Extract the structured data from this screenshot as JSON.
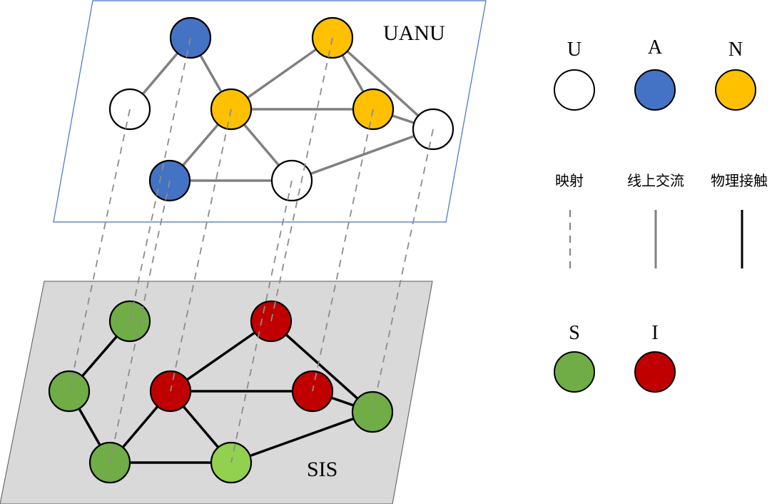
{
  "layers": {
    "top": {
      "label": "UANU",
      "border": "#4472c4"
    },
    "bottom": {
      "label": "SIS",
      "fill": "#d9d9d9"
    }
  },
  "legend": {
    "states_top": [
      {
        "label": "U",
        "color": "#ffffff"
      },
      {
        "label": "A",
        "color": "#4472c4"
      },
      {
        "label": "N",
        "color": "#ffc000"
      }
    ],
    "edges": [
      {
        "label": "映射",
        "style": "dashed",
        "color": "#808080"
      },
      {
        "label": "线上交流",
        "style": "solid",
        "color": "#808080"
      },
      {
        "label": "物理接触",
        "style": "solid",
        "color": "#000000"
      }
    ],
    "states_bottom": [
      {
        "label": "S",
        "color": "#70ad47"
      },
      {
        "label": "I",
        "color": "#c00000"
      }
    ]
  },
  "nodes_top": [
    {
      "id": "t1",
      "state": "U"
    },
    {
      "id": "t2",
      "state": "A"
    },
    {
      "id": "t3",
      "state": "N"
    },
    {
      "id": "t4",
      "state": "A"
    },
    {
      "id": "t5",
      "state": "U"
    },
    {
      "id": "t6",
      "state": "N"
    },
    {
      "id": "t7",
      "state": "N"
    },
    {
      "id": "t8",
      "state": "U"
    }
  ],
  "nodes_bottom": [
    {
      "id": "b1",
      "state": "S"
    },
    {
      "id": "b2",
      "state": "S"
    },
    {
      "id": "b3",
      "state": "I"
    },
    {
      "id": "b4",
      "state": "S"
    },
    {
      "id": "b5",
      "state": "S",
      "color": "#92d050"
    },
    {
      "id": "b6",
      "state": "I"
    },
    {
      "id": "b7",
      "state": "I"
    },
    {
      "id": "b8",
      "state": "S"
    }
  ],
  "edges_top": [
    [
      "t1",
      "t2"
    ],
    [
      "t2",
      "t3"
    ],
    [
      "t3",
      "t6"
    ],
    [
      "t3",
      "t7"
    ],
    [
      "t3",
      "t4"
    ],
    [
      "t3",
      "t5"
    ],
    [
      "t4",
      "t5"
    ],
    [
      "t6",
      "t7"
    ],
    [
      "t6",
      "t8"
    ],
    [
      "t7",
      "t8"
    ],
    [
      "t5",
      "t8"
    ]
  ],
  "edges_bottom": [
    [
      "b2",
      "b1"
    ],
    [
      "b2",
      "b4"
    ],
    [
      "b4",
      "b3"
    ],
    [
      "b4",
      "b5"
    ],
    [
      "b3",
      "b5"
    ],
    [
      "b3",
      "b6"
    ],
    [
      "b3",
      "b7"
    ],
    [
      "b7",
      "b8"
    ],
    [
      "b6",
      "b8"
    ],
    [
      "b5",
      "b8"
    ]
  ],
  "mapping": [
    [
      "t1",
      "b2"
    ],
    [
      "t2",
      "b1"
    ],
    [
      "t3",
      "b3"
    ],
    [
      "t4",
      "b4"
    ],
    [
      "t5",
      "b5"
    ],
    [
      "t6",
      "b6"
    ],
    [
      "t7",
      "b7"
    ],
    [
      "t8",
      "b8"
    ]
  ]
}
